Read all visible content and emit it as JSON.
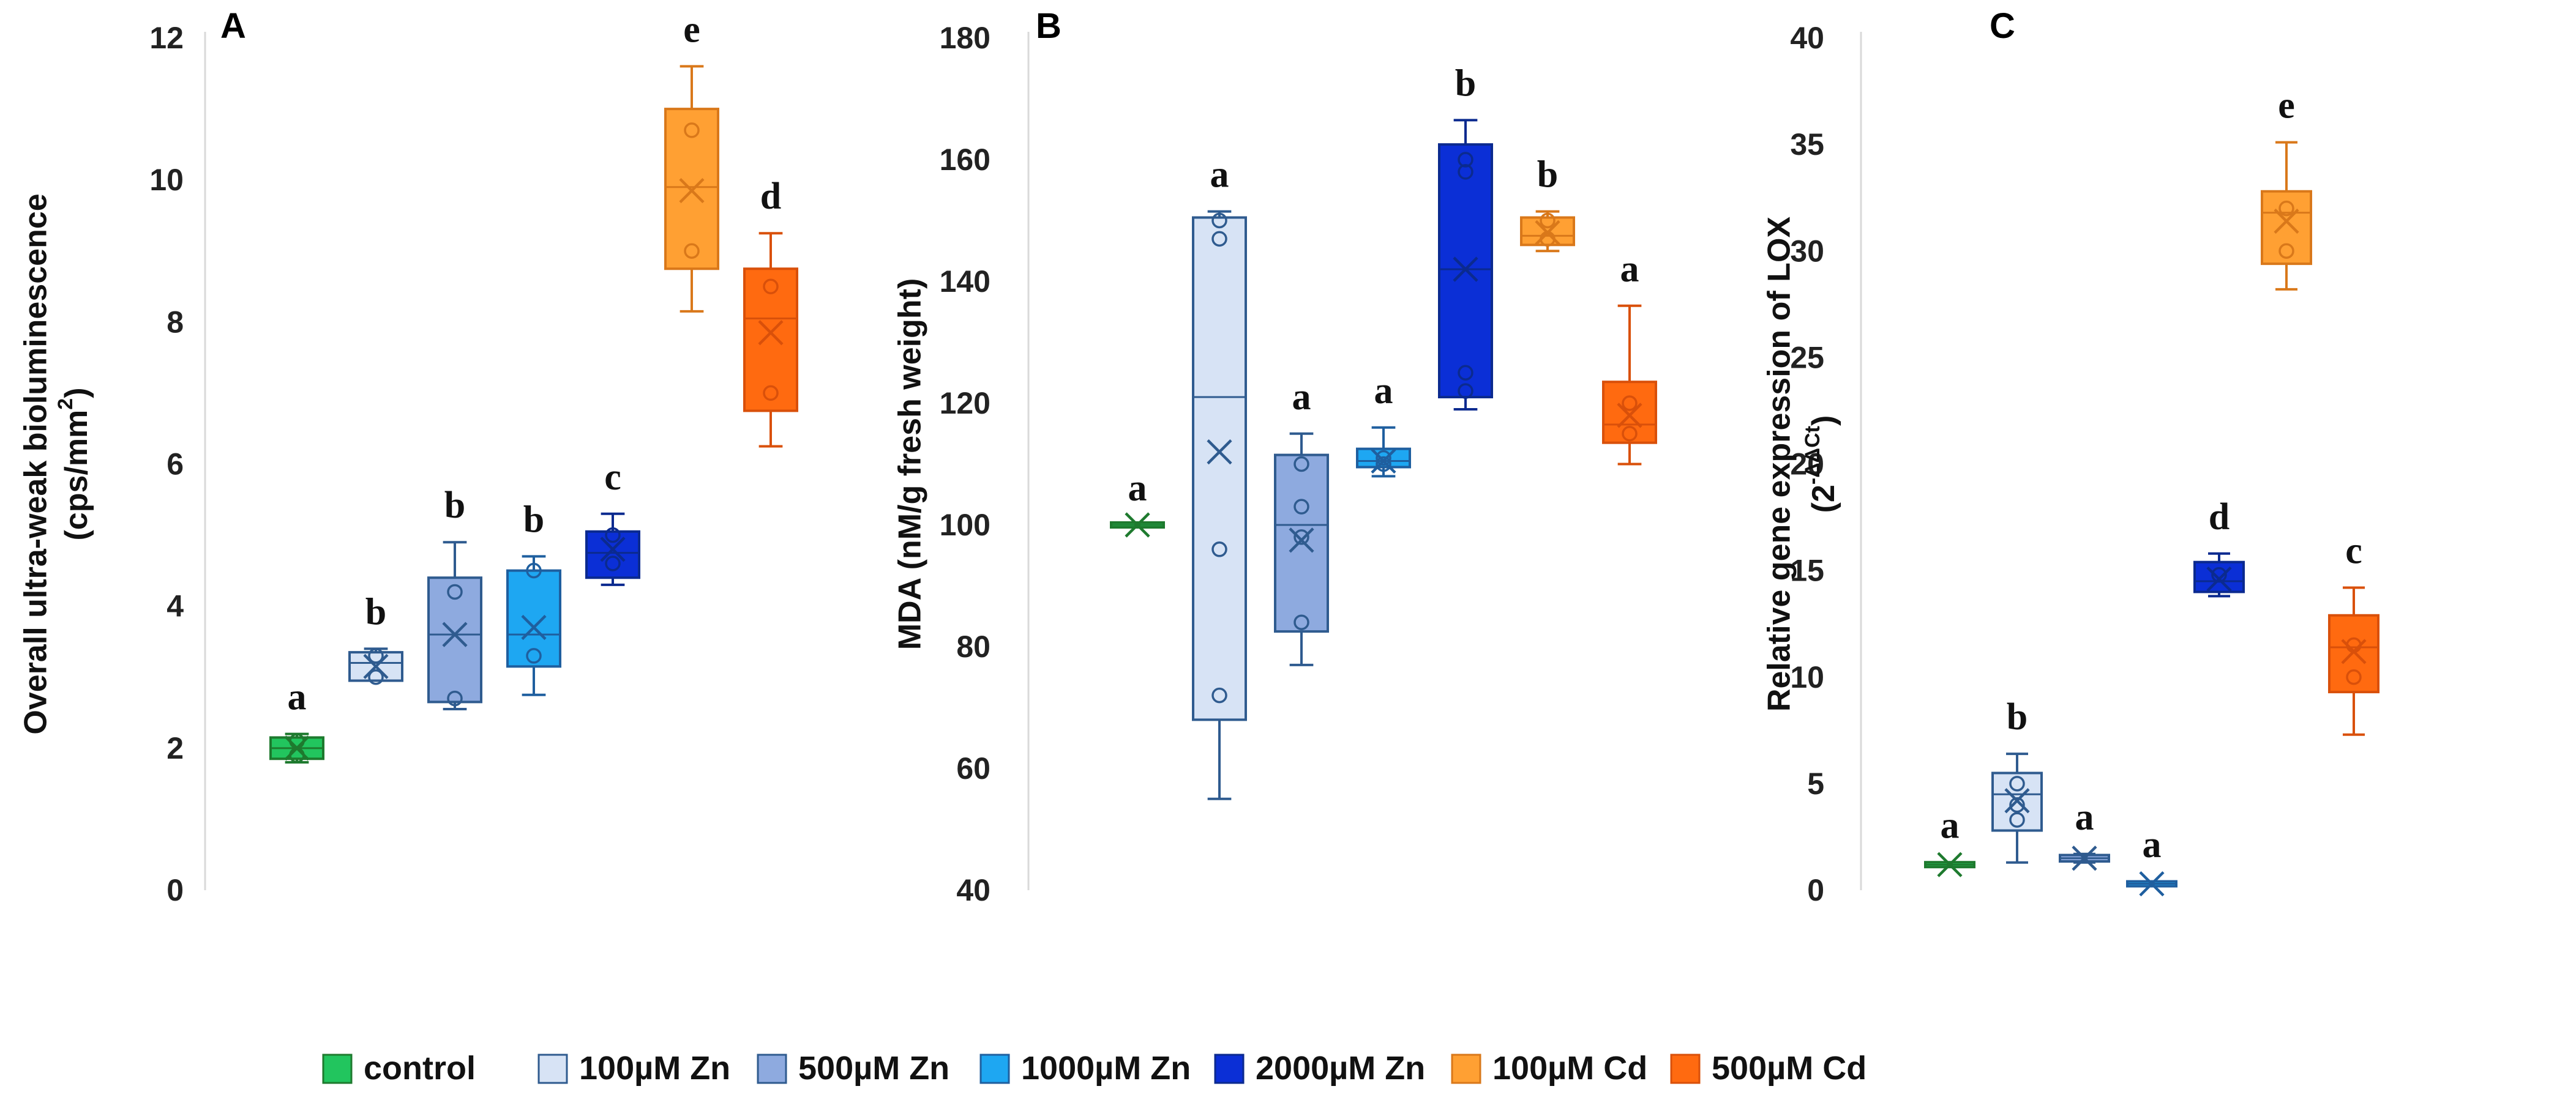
{
  "legend": [
    {
      "label": "control",
      "fill": "#22c55e",
      "stroke": "#1e7a2e"
    },
    {
      "label": "100µM Zn",
      "fill": "#d7e3f5",
      "stroke": "#2f5b8f"
    },
    {
      "label": "500µM Zn",
      "fill": "#8eaadf",
      "stroke": "#2f5b8f"
    },
    {
      "label": "1000µM Zn",
      "fill": "#1ea7f2",
      "stroke": "#1f5f9f"
    },
    {
      "label": "2000µM Zn",
      "fill": "#0b2fd6",
      "stroke": "#0b2a8f"
    },
    {
      "label": "100µM Cd",
      "fill": "#ffa033",
      "stroke": "#d9781a"
    },
    {
      "label": "500µM Cd",
      "fill": "#ff6a10",
      "stroke": "#d9500a"
    }
  ],
  "chart_data": [
    {
      "type": "box",
      "panel_letter": "A",
      "title": "",
      "xlabel": "",
      "ylabel_main": "Overall ultra-weak bioluminescence",
      "ylabel_sub": "(cps/mm",
      "ylabel_sub_sup": "2",
      "ylabel_sub_end": ")",
      "ylim": [
        0,
        12
      ],
      "yticks": [
        "0",
        "2",
        "4",
        "6",
        "8",
        "10",
        "12"
      ],
      "series": [
        {
          "name": "control",
          "min": 1.8,
          "q1": 1.85,
          "median": 2.0,
          "q3": 2.15,
          "max": 2.2,
          "mean": 2.0,
          "points": [
            1.9,
            2.1
          ],
          "letter": "a"
        },
        {
          "name": "100µM Zn",
          "min": 2.95,
          "q1": 2.95,
          "median": 3.2,
          "q3": 3.35,
          "max": 3.4,
          "mean": 3.15,
          "points": [
            3.0,
            3.3
          ],
          "letter": "b"
        },
        {
          "name": "500µM Zn",
          "min": 2.55,
          "q1": 2.65,
          "median": 3.6,
          "q3": 4.4,
          "max": 4.9,
          "mean": 3.6,
          "points": [
            2.7,
            4.2
          ],
          "letter": "b"
        },
        {
          "name": "1000µM Zn",
          "min": 2.75,
          "q1": 3.15,
          "median": 3.6,
          "q3": 4.5,
          "max": 4.7,
          "mean": 3.7,
          "points": [
            3.3,
            4.5
          ],
          "letter": "b"
        },
        {
          "name": "2000µM Zn",
          "min": 4.3,
          "q1": 4.4,
          "median": 4.75,
          "q3": 5.05,
          "max": 5.3,
          "mean": 4.8,
          "points": [
            4.6,
            5.0
          ],
          "letter": "c"
        },
        {
          "name": "100µM Cd",
          "min": 8.15,
          "q1": 8.75,
          "median": 9.9,
          "q3": 11.0,
          "max": 11.6,
          "mean": 9.85,
          "points": [
            9.0,
            10.7
          ],
          "letter": "e"
        },
        {
          "name": "500µM Cd",
          "min": 6.25,
          "q1": 6.75,
          "median": 8.05,
          "q3": 8.75,
          "max": 9.25,
          "mean": 7.85,
          "points": [
            7.0,
            8.5
          ],
          "letter": "d"
        }
      ]
    },
    {
      "type": "box",
      "panel_letter": "B",
      "title": "",
      "xlabel": "",
      "ylabel_main": "MDA (nM/g fresh  weight)",
      "ylim": [
        40,
        180
      ],
      "yticks": [
        "40",
        "60",
        "80",
        "100",
        "120",
        "140",
        "160",
        "180"
      ],
      "series": [
        {
          "name": "control",
          "min": 100,
          "q1": 100,
          "median": 100,
          "q3": 100,
          "max": 100,
          "mean": 100,
          "points": [],
          "letter": "a"
        },
        {
          "name": "100µM Zn",
          "min": 55,
          "q1": 68,
          "median": 121,
          "q3": 150.5,
          "max": 151.5,
          "mean": 112,
          "points": [
            72,
            96,
            147,
            150
          ],
          "letter": "a"
        },
        {
          "name": "500µM Zn",
          "min": 77,
          "q1": 82.5,
          "median": 100,
          "q3": 111.5,
          "max": 115,
          "mean": 97.5,
          "points": [
            84,
            98,
            103,
            110
          ],
          "letter": "a"
        },
        {
          "name": "1000µM Zn",
          "min": 108,
          "q1": 109.5,
          "median": 110.5,
          "q3": 112.5,
          "max": 116,
          "mean": 110.5,
          "points": [
            110,
            111
          ],
          "letter": "a"
        },
        {
          "name": "2000µM Zn",
          "min": 119,
          "q1": 121,
          "median": 142,
          "q3": 162.5,
          "max": 166.5,
          "mean": 142,
          "points": [
            122,
            125,
            158,
            160
          ],
          "letter": "b"
        },
        {
          "name": "100µM Cd",
          "min": 145,
          "q1": 146,
          "median": 147.5,
          "q3": 150.5,
          "max": 151.5,
          "mean": 148,
          "points": [
            147,
            150
          ],
          "letter": "b"
        },
        {
          "name": "500µM Cd",
          "min": 110,
          "q1": 113.5,
          "median": 116.5,
          "q3": 123.5,
          "max": 136,
          "mean": 118,
          "points": [
            115,
            120
          ],
          "letter": "a"
        }
      ]
    },
    {
      "type": "box",
      "panel_letter": "C",
      "title": "",
      "xlabel": "",
      "ylabel_main": "Relative gene expression of LOX",
      "ylabel_sub": "(2",
      "ylabel_sub_sup": "-ΔΔCt",
      "ylabel_sub_end": ")",
      "ylim": [
        0,
        40
      ],
      "yticks": [
        "0",
        "5",
        "10",
        "15",
        "20",
        "25",
        "30",
        "35",
        "40"
      ],
      "series": [
        {
          "name": "control",
          "min": 1.1,
          "q1": 1.1,
          "median": 1.2,
          "q3": 1.3,
          "max": 1.3,
          "mean": 1.2,
          "points": [],
          "letter": "a"
        },
        {
          "name": "100µM Zn",
          "min": 1.3,
          "q1": 2.8,
          "median": 4.5,
          "q3": 5.5,
          "max": 6.4,
          "mean": 4.2,
          "points": [
            3.3,
            4.0,
            5.0
          ],
          "letter": "b"
        },
        {
          "name": "500µM Zn",
          "min": 1.3,
          "q1": 1.35,
          "median": 1.5,
          "q3": 1.65,
          "max": 1.7,
          "mean": 1.5,
          "points": [],
          "letter": "a"
        },
        {
          "name": "1000µM Zn",
          "min": 0.2,
          "q1": 0.25,
          "median": 0.3,
          "q3": 0.35,
          "max": 0.4,
          "mean": 0.3,
          "points": [],
          "letter": "a"
        },
        {
          "name": "2000µM Zn",
          "min": 13.8,
          "q1": 14.0,
          "median": 14.5,
          "q3": 15.4,
          "max": 15.8,
          "mean": 14.6,
          "points": [
            14.8
          ],
          "letter": "d"
        },
        {
          "name": "100µM Cd",
          "min": 28.2,
          "q1": 29.4,
          "median": 31.8,
          "q3": 32.8,
          "max": 35.1,
          "mean": 31.4,
          "points": [
            30.0,
            32.0
          ],
          "letter": "e"
        },
        {
          "name": "500µM Cd",
          "min": 7.3,
          "q1": 9.3,
          "median": 11.4,
          "q3": 12.9,
          "max": 14.2,
          "mean": 11.2,
          "points": [
            10.0,
            11.5
          ],
          "letter": "c"
        }
      ]
    }
  ]
}
